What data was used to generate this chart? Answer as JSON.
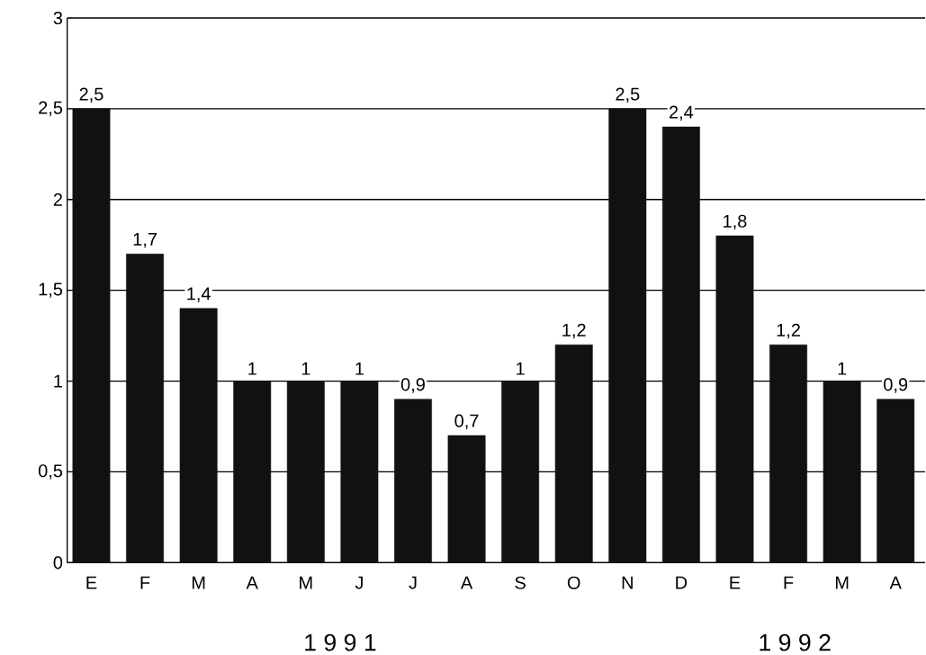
{
  "chart_data": {
    "type": "bar",
    "categories": [
      "E",
      "F",
      "M",
      "A",
      "M",
      "J",
      "J",
      "A",
      "S",
      "O",
      "N",
      "D",
      "E",
      "F",
      "M",
      "A"
    ],
    "values": [
      2.5,
      1.7,
      1.4,
      1,
      1,
      1,
      0.9,
      0.7,
      1,
      1.2,
      2.5,
      2.4,
      1.8,
      1.2,
      1,
      0.9
    ],
    "value_labels": [
      "2,5",
      "1,7",
      "1,4",
      "1",
      "1",
      "1",
      "0,9",
      "0,7",
      "1",
      "1,2",
      "2,5",
      "2,4",
      "1,8",
      "1,2",
      "1",
      "0,9"
    ],
    "color": "#111111",
    "ylim": [
      0,
      3
    ],
    "yticks": [
      0,
      {
        "value": 0.5,
        "label": "0,5"
      },
      1,
      {
        "value": 1.5,
        "label": "1,5"
      },
      2,
      {
        "value": 2.5,
        "label": "2,5"
      },
      3
    ],
    "grid": "y",
    "annotations": [
      "1 9 9 1",
      "1 9 9 2"
    ]
  }
}
